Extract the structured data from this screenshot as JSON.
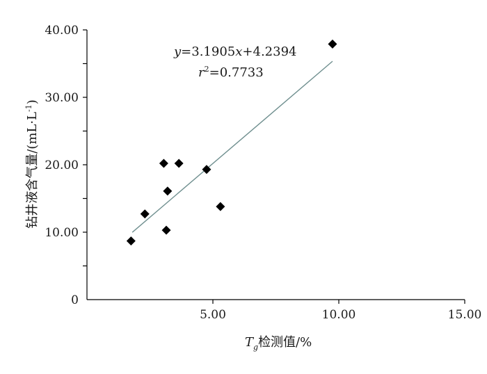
{
  "chart_data": {
    "type": "scatter",
    "xlabel": "T_g检测值/%",
    "xlabel_main": "T",
    "xlabel_sub": "g",
    "xlabel_rest": "检测值/%",
    "ylabel": "钻井液含气量/(mL·L⁻¹)",
    "ylabel_base": "钻井液含气量/(mL·L",
    "ylabel_sup": "-1",
    "ylabel_close": ")",
    "xlim": [
      0,
      15
    ],
    "ylim": [
      0,
      40
    ],
    "x_ticks": [
      {
        "value": 5,
        "label": "5.00"
      },
      {
        "value": 10,
        "label": "10.00"
      },
      {
        "value": 15,
        "label": "15.00"
      }
    ],
    "y_ticks": [
      {
        "value": 0,
        "label": "0"
      },
      {
        "value": 10,
        "label": "10.00"
      },
      {
        "value": 20,
        "label": "20.00"
      },
      {
        "value": 30,
        "label": "30.00"
      },
      {
        "value": 40,
        "label": "40.00"
      }
    ],
    "y_minor_ticks": [
      5,
      15,
      25,
      35
    ],
    "points": [
      {
        "x": 1.75,
        "y": 8.7
      },
      {
        "x": 2.3,
        "y": 12.7
      },
      {
        "x": 3.05,
        "y": 20.2
      },
      {
        "x": 3.15,
        "y": 10.3
      },
      {
        "x": 3.2,
        "y": 16.1
      },
      {
        "x": 3.65,
        "y": 20.2
      },
      {
        "x": 4.75,
        "y": 19.3
      },
      {
        "x": 5.3,
        "y": 13.8
      },
      {
        "x": 9.75,
        "y": 37.9
      }
    ],
    "trendline": {
      "slope": 3.1905,
      "intercept": 4.2394,
      "x_range": [
        1.8,
        9.75
      ],
      "equation_y": "y",
      "equation_rest": "=3.1905",
      "equation_x": "x",
      "equation_end": "+4.2394",
      "r2_r": "r",
      "r2_sup": "2",
      "r2_value": "=0.7733"
    },
    "grid": false,
    "colors": {
      "marker": "#000000",
      "trendline": "#6f8f8f",
      "axis": "#000000"
    }
  }
}
